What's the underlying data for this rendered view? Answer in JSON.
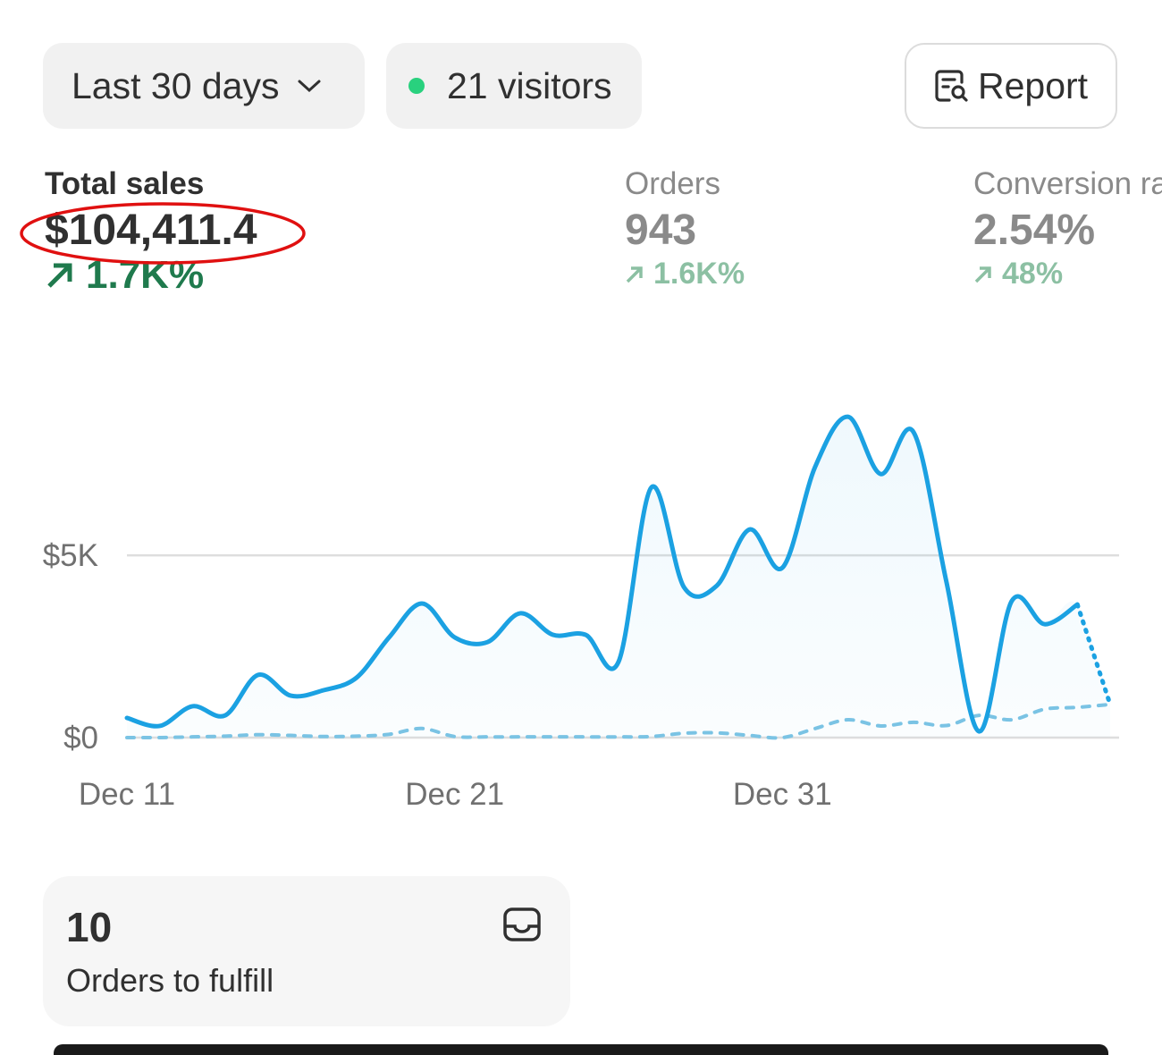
{
  "controls": {
    "date_range": "Last 30 days",
    "visitors": "21 visitors",
    "report": "Report"
  },
  "metrics": [
    {
      "label": "Total sales",
      "value": "$104,411.4",
      "change": "1.7K%"
    },
    {
      "label": "Orders",
      "value": "943",
      "change": "1.6K%"
    },
    {
      "label": "Conversion rate",
      "value": "2.54%",
      "change": "48%"
    }
  ],
  "chart_data": {
    "type": "line",
    "categories": [
      "Dec 11",
      null,
      null,
      null,
      null,
      null,
      null,
      null,
      null,
      null,
      "Dec 21",
      null,
      null,
      null,
      null,
      null,
      null,
      null,
      null,
      null,
      "Dec 31",
      null,
      null,
      null,
      null,
      null,
      null,
      null,
      null,
      null,
      null
    ],
    "series": [
      {
        "color": "#1ba1e2",
        "values": [
          540,
          320,
          860,
          610,
          1720,
          1150,
          1300,
          1640,
          2750,
          3680,
          2750,
          2620,
          3410,
          2820,
          2820,
          2080,
          6860,
          4120,
          4170,
          5710,
          4660,
          7430,
          8800,
          7230,
          8380,
          4290,
          170,
          3750,
          3110,
          3650,
          910
        ],
        "last_point_partial": true,
        "area": true
      },
      {
        "color": "#7cc4e4",
        "dashed": true,
        "values": [
          0,
          0,
          20,
          40,
          80,
          60,
          30,
          40,
          90,
          250,
          30,
          20,
          20,
          20,
          20,
          20,
          30,
          120,
          130,
          60,
          0,
          250,
          490,
          320,
          420,
          330,
          610,
          490,
          780,
          830,
          910
        ]
      }
    ],
    "ylim": [
      0,
      9000
    ],
    "yticks": [
      {
        "value": 0,
        "label": "$0"
      },
      {
        "value": 5000,
        "label": "$5K"
      }
    ],
    "grid": true
  },
  "fulfill_card": {
    "count": "10",
    "label": "Orders to fulfill"
  }
}
